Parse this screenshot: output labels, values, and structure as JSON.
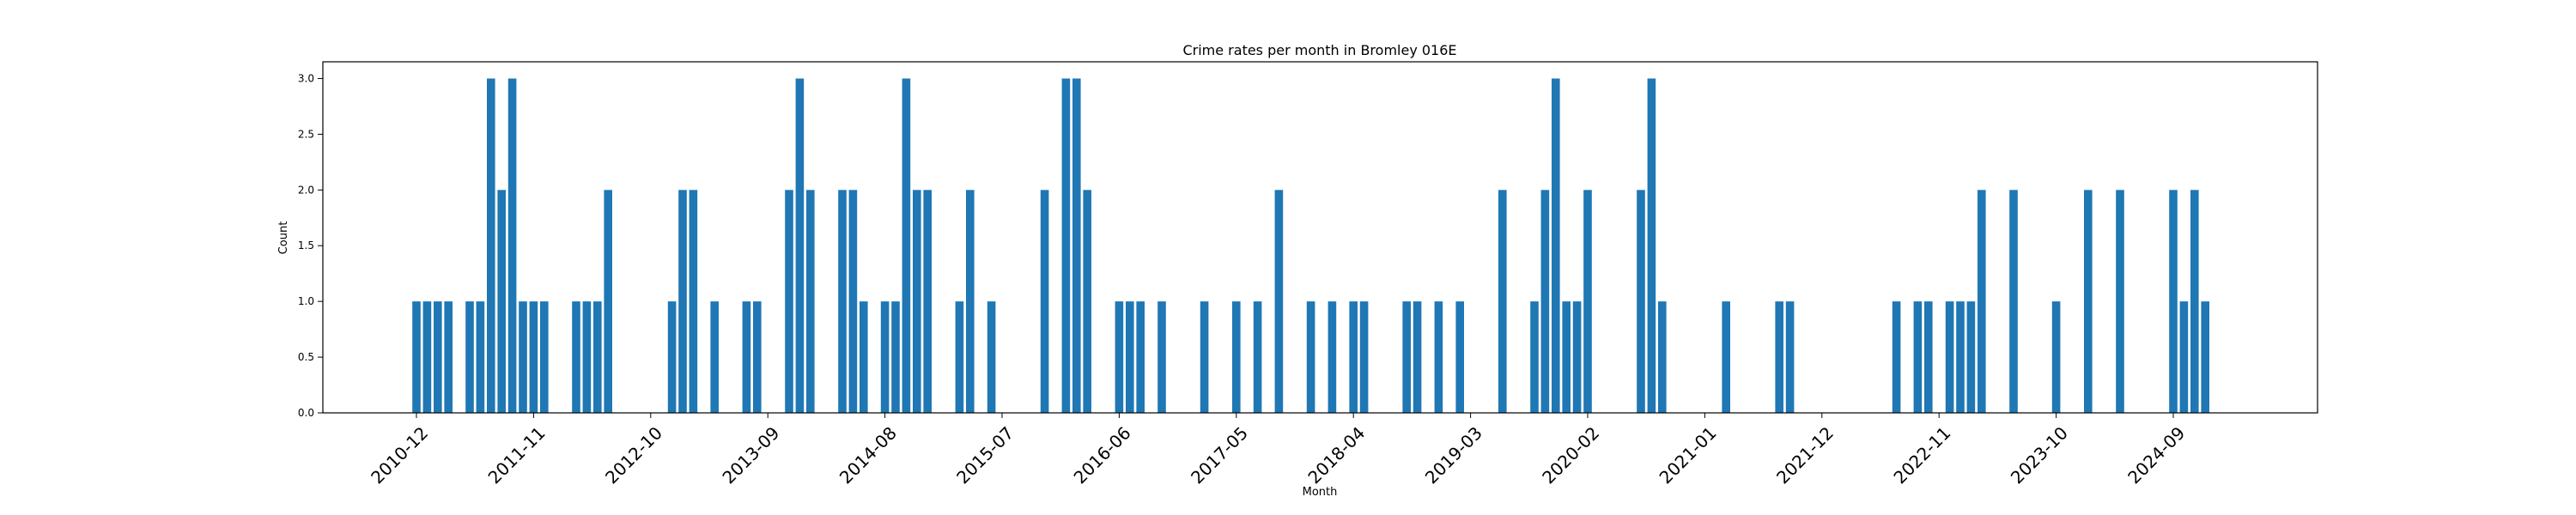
{
  "chart_data": {
    "type": "bar",
    "title": "Crime rates per month in Bromley 016E",
    "xlabel": "Month",
    "ylabel": "Count",
    "ylim": [
      0,
      3.15
    ],
    "yticks": [
      "0.0",
      "0.5",
      "1.0",
      "1.5",
      "2.0",
      "2.5",
      "3.0"
    ],
    "xtick_labels": [
      "2010-12",
      "2011-11",
      "2012-10",
      "2013-09",
      "2014-08",
      "2015-07",
      "2016-06",
      "2017-05",
      "2018-04",
      "2019-03",
      "2020-02",
      "2021-01",
      "2021-12",
      "2022-11",
      "2023-10",
      "2024-09"
    ],
    "grid": false,
    "bar_color": "#1f77b4",
    "categories": [
      "2010-12",
      "2011-01",
      "2011-02",
      "2011-03",
      "2011-05",
      "2011-06",
      "2011-07",
      "2011-08",
      "2011-09",
      "2011-10",
      "2011-11",
      "2011-12",
      "2012-03",
      "2012-04",
      "2012-05",
      "2012-06",
      "2012-12",
      "2013-01",
      "2013-02",
      "2013-04",
      "2013-07",
      "2013-08",
      "2013-11",
      "2013-12",
      "2014-01",
      "2014-04",
      "2014-05",
      "2014-06",
      "2014-08",
      "2014-09",
      "2014-10",
      "2014-11",
      "2014-12",
      "2015-03",
      "2015-04",
      "2015-06",
      "2015-11",
      "2016-01",
      "2016-02",
      "2016-03",
      "2016-06",
      "2016-07",
      "2016-08",
      "2016-10",
      "2017-02",
      "2017-05",
      "2017-07",
      "2017-09",
      "2017-12",
      "2018-02",
      "2018-04",
      "2018-05",
      "2018-09",
      "2018-10",
      "2018-12",
      "2019-02",
      "2019-06",
      "2019-09",
      "2019-10",
      "2019-11",
      "2019-12",
      "2020-01",
      "2020-02",
      "2020-07",
      "2020-08",
      "2020-09",
      "2021-03",
      "2021-08",
      "2021-09",
      "2022-07",
      "2022-09",
      "2022-10",
      "2022-12",
      "2023-01",
      "2023-02",
      "2023-03",
      "2023-06",
      "2023-10",
      "2024-01",
      "2024-04",
      "2024-09",
      "2024-10",
      "2024-11",
      "2024-12"
    ],
    "values": [
      1,
      1,
      1,
      1,
      1,
      1,
      3,
      2,
      3,
      1,
      1,
      1,
      1,
      1,
      1,
      2,
      1,
      2,
      2,
      1,
      1,
      1,
      2,
      3,
      2,
      2,
      2,
      1,
      1,
      1,
      3,
      2,
      2,
      1,
      2,
      1,
      2,
      3,
      3,
      2,
      1,
      1,
      1,
      1,
      1,
      1,
      1,
      2,
      1,
      1,
      1,
      1,
      1,
      1,
      1,
      1,
      2,
      1,
      2,
      3,
      1,
      1,
      2,
      2,
      3,
      1,
      1,
      1,
      1,
      1,
      1,
      1,
      1,
      1,
      1,
      2,
      2,
      1,
      2,
      2,
      2,
      1,
      2,
      1
    ]
  }
}
